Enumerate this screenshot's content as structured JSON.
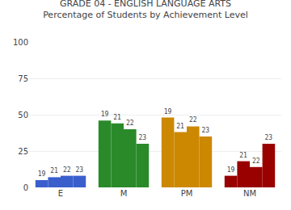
{
  "chart_data": {
    "type": "bar",
    "title": "GRADE 04 - ENGLISH LANGUAGE ARTS",
    "subtitle": "Percentage of Students by Achievement Level",
    "categories": [
      "E",
      "M",
      "PM",
      "NM"
    ],
    "series": [
      {
        "name": "19",
        "values": [
          5,
          46,
          48,
          8
        ],
        "colors": [
          "#3a5fcd",
          "#2a8a2a",
          "#cc8800",
          "#990000"
        ]
      },
      {
        "name": "21",
        "values": [
          7,
          44,
          38,
          18
        ],
        "colors": [
          "#3a5fcd",
          "#2a8a2a",
          "#cc8800",
          "#990000"
        ]
      },
      {
        "name": "22",
        "values": [
          8,
          40,
          42,
          14
        ],
        "colors": [
          "#3a5fcd",
          "#2a8a2a",
          "#cc8800",
          "#990000"
        ]
      },
      {
        "name": "23",
        "values": [
          8,
          30,
          35,
          30
        ],
        "colors": [
          "#3a5fcd",
          "#2a8a2a",
          "#cc8800",
          "#990000"
        ]
      }
    ],
    "ylim": [
      0,
      100
    ],
    "yticks": [
      0,
      25,
      50,
      75,
      100
    ],
    "grid": true
  }
}
